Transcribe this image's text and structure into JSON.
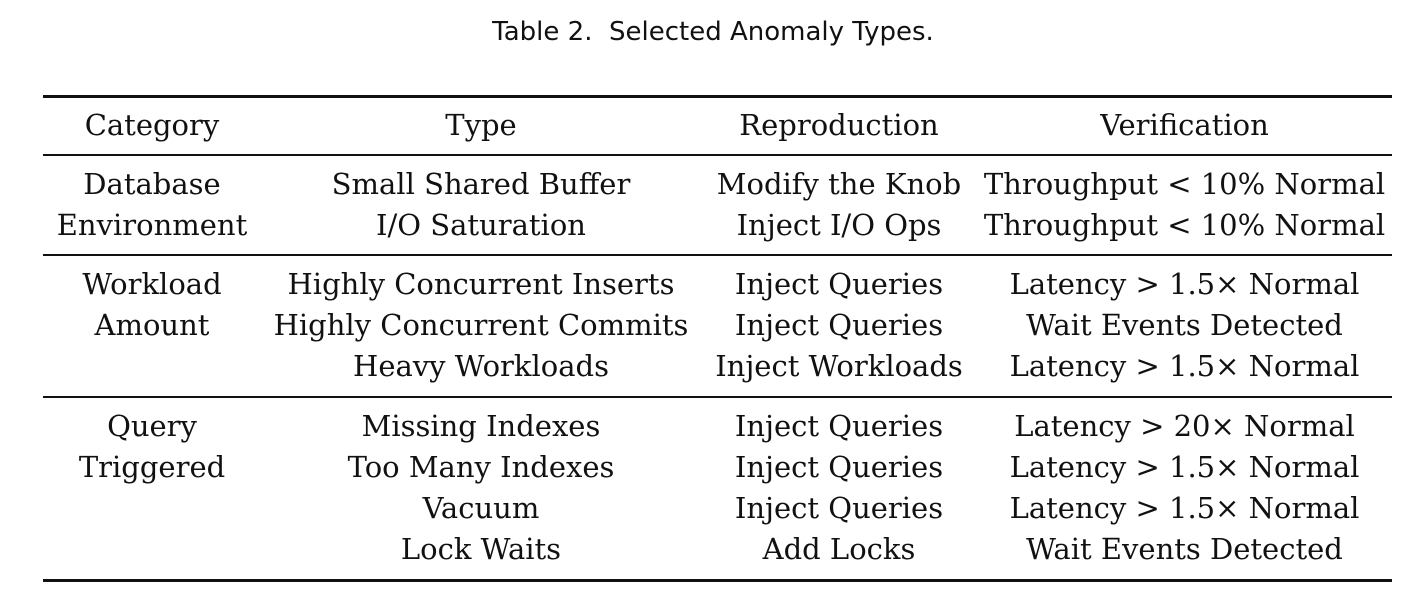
{
  "table": {
    "caption": "Table 2.  Selected Anomaly Types.",
    "headers": [
      "Category",
      "Type",
      "Reproduction",
      "Verification"
    ],
    "groups": [
      {
        "rows": [
          [
            "Database",
            "Small Shared Buffer",
            "Modify the Knob",
            "Throughput < 10% Normal"
          ],
          [
            "Environment",
            "I/O Saturation",
            "Inject I/O Ops",
            "Throughput < 10% Normal"
          ]
        ]
      },
      {
        "rows": [
          [
            "Workload",
            "Highly Concurrent Inserts",
            "Inject Queries",
            "Latency > 1.5× Normal"
          ],
          [
            "Amount",
            "Highly Concurrent Commits",
            "Inject Queries",
            "Wait Events Detected"
          ],
          [
            "",
            "Heavy Workloads",
            "Inject Workloads",
            "Latency > 1.5× Normal"
          ]
        ]
      },
      {
        "rows": [
          [
            "Query",
            "Missing Indexes",
            "Inject Queries",
            "Latency > 20× Normal"
          ],
          [
            "Triggered",
            "Too Many Indexes",
            "Inject Queries",
            "Latency > 1.5× Normal"
          ],
          [
            "",
            "Vacuum",
            "Inject Queries",
            "Latency > 1.5× Normal"
          ],
          [
            "",
            "Lock Waits",
            "Add Locks",
            "Wait Events Detected"
          ]
        ]
      }
    ]
  }
}
